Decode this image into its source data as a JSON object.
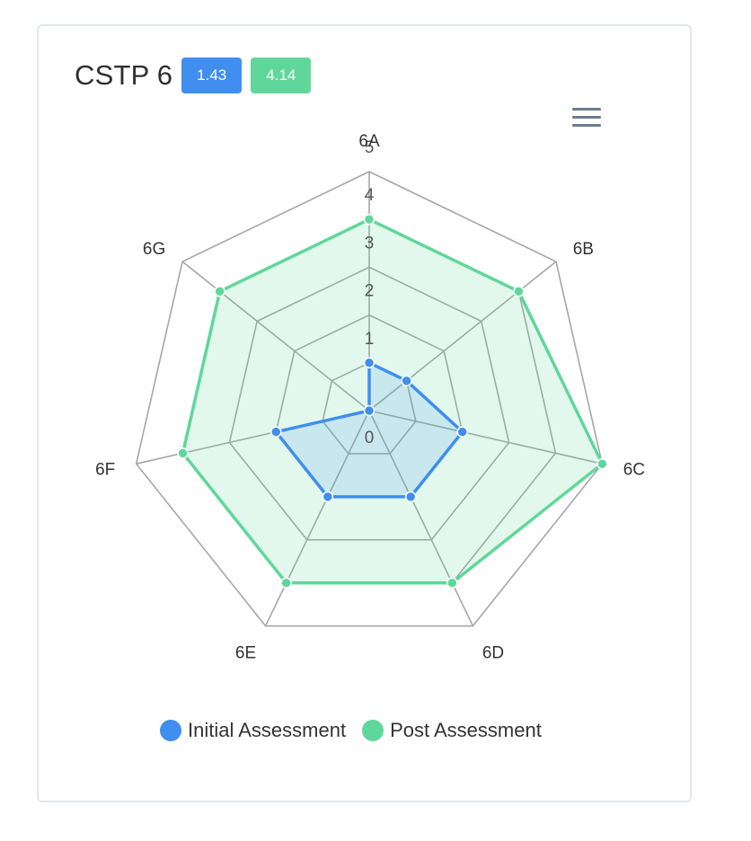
{
  "card": {
    "title": "CSTP 6",
    "badges": [
      {
        "label": "1.43",
        "color": "#3f8ef0"
      },
      {
        "label": "4.14",
        "color": "#60d79a"
      }
    ]
  },
  "menu_icon": "hamburger-menu-icon",
  "chart_data": {
    "type": "radar",
    "categories": [
      "6A",
      "6B",
      "6C",
      "6D",
      "6E",
      "6F",
      "6G"
    ],
    "scale": {
      "min": 0,
      "max": 5,
      "ticks": [
        "0",
        "1",
        "2",
        "3",
        "4",
        "5"
      ]
    },
    "grid": true,
    "legend_position": "bottom",
    "series": [
      {
        "name": "Initial Assessment",
        "color": "#3f8ef0",
        "values": [
          1,
          1,
          2,
          2,
          2,
          2,
          0
        ]
      },
      {
        "name": "Post Assessment",
        "color": "#60d79a",
        "values": [
          4,
          4,
          5,
          4,
          4,
          4,
          4
        ]
      }
    ]
  }
}
